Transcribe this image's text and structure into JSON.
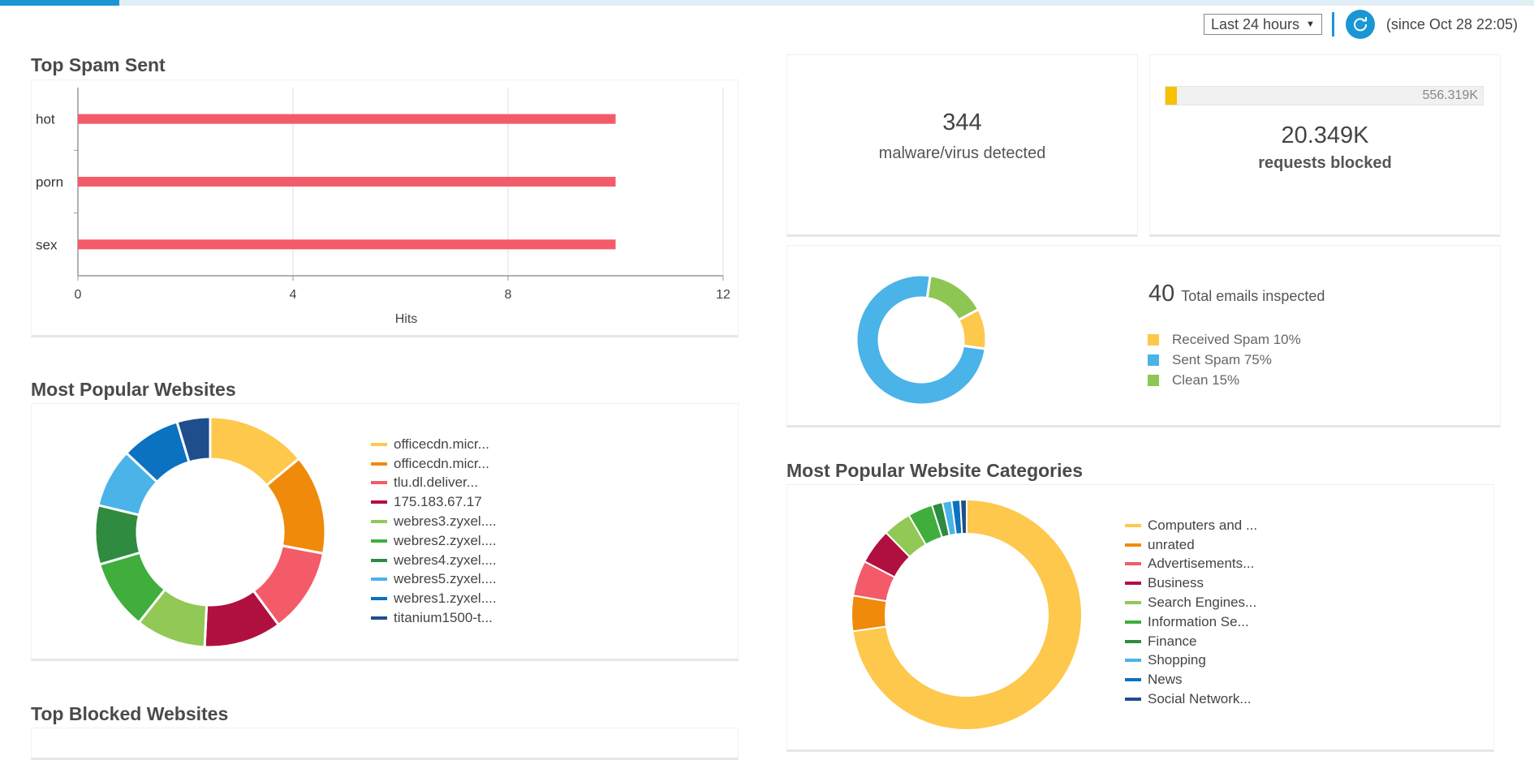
{
  "topbar": {
    "progress_fraction": 0.078
  },
  "timebar": {
    "range_label": "Last 24 hours",
    "caret_icon": "caret-down-icon",
    "refresh_icon": "refresh-icon",
    "since_text": "(since Oct 28 22:05)"
  },
  "top_spam": {
    "title": "Top Spam Sent",
    "chart_data": {
      "type": "bar",
      "orientation": "horizontal",
      "categories": [
        "hot",
        "porn",
        "sex"
      ],
      "values": [
        10,
        10,
        10
      ],
      "xlabel": "Hits",
      "ylabel": "",
      "xlim": [
        0,
        12
      ],
      "xticks": [
        "0",
        "4",
        "8",
        "12"
      ],
      "grid": true,
      "color": "#f45b69"
    }
  },
  "malware": {
    "count": "344",
    "label": "malware/virus detected"
  },
  "requests": {
    "bar_value": 20.349,
    "bar_max": 556.319,
    "bar_max_label": "556.319K",
    "count": "20.349K",
    "label": "requests blocked",
    "bar_color": "#f8c100"
  },
  "emails": {
    "count": "40",
    "label": "Total emails inspected",
    "chart_data": {
      "type": "pie",
      "donut": true,
      "categories": [
        "Received Spam",
        "Sent Spam",
        "Clean"
      ],
      "values": [
        10,
        75,
        15
      ],
      "colors": [
        "#fdc84c",
        "#4ab3e8",
        "#8dc652"
      ],
      "start_order": [
        "Clean",
        "Received Spam",
        "Sent Spam"
      ]
    },
    "legend": [
      {
        "text": "Received Spam 10%",
        "color": "#fdc84c"
      },
      {
        "text": "Sent Spam 75%",
        "color": "#4ab3e8"
      },
      {
        "text": "Clean 15%",
        "color": "#8dc652"
      }
    ]
  },
  "websites": {
    "title": "Most Popular Websites",
    "chart_data": {
      "type": "pie",
      "donut": true,
      "categories": [
        "officecdn.micr...",
        "officecdn.micr...",
        "tlu.dl.deliver...",
        "175.183.67.17",
        "webres3.zyxel....",
        "webres2.zyxel....",
        "webres4.zyxel....",
        "webres5.zyxel....",
        "webres1.zyxel....",
        "titanium1500-t..."
      ],
      "values": [
        13.5,
        13.5,
        11.5,
        10.5,
        9.5,
        9.5,
        8,
        8,
        8,
        4.5
      ],
      "colors": [
        "#fdc84c",
        "#f08a0b",
        "#f45b69",
        "#b0103f",
        "#92c855",
        "#3fae3d",
        "#2e8b40",
        "#4ab3e8",
        "#0a72c0",
        "#1f4e8c"
      ]
    }
  },
  "categories": {
    "title": "Most Popular Website Categories",
    "chart_data": {
      "type": "pie",
      "donut": true,
      "categories": [
        "Computers and ...",
        "unrated",
        "Advertisements...",
        "Business",
        "Search Engines...",
        "Information Se...",
        "Finance",
        "Shopping",
        "News",
        "Social Network..."
      ],
      "values": [
        73,
        5,
        5,
        5,
        4,
        3.5,
        1.5,
        1.3,
        1.2,
        0.9
      ],
      "colors": [
        "#fdc84c",
        "#f08a0b",
        "#f45b69",
        "#b0103f",
        "#92c855",
        "#3fae3d",
        "#2e8b40",
        "#4ab3e8",
        "#0a72c0",
        "#1f4e8c"
      ]
    }
  },
  "blocked": {
    "title": "Top Blocked Websites"
  }
}
